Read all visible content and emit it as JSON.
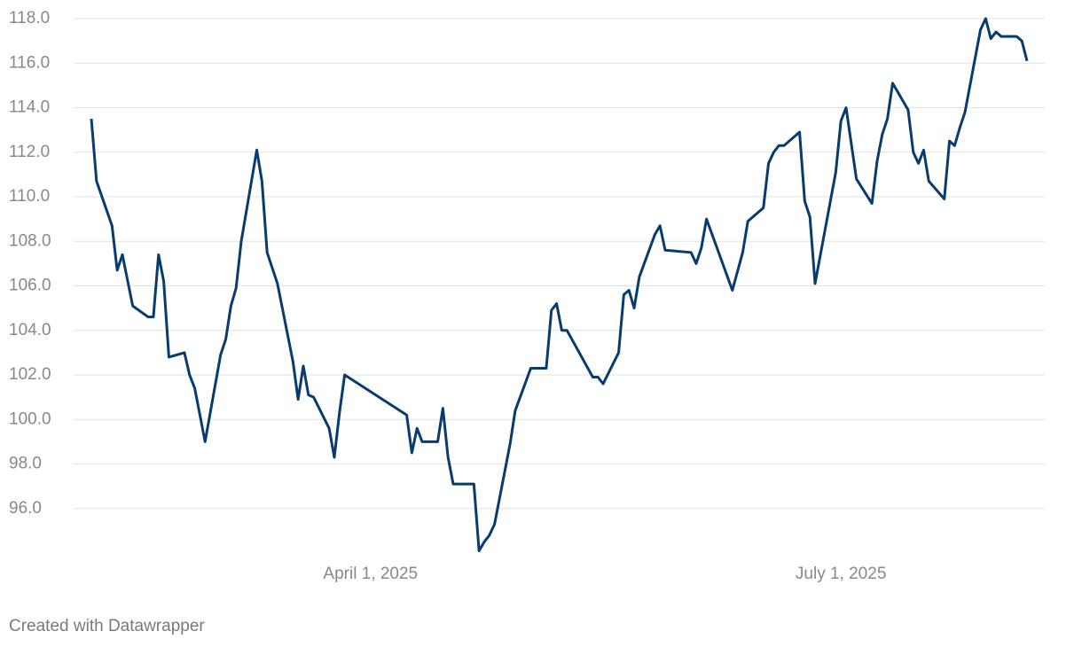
{
  "chart_data": {
    "type": "line",
    "credit": "Created with Datawrapper",
    "x": [
      "2025-02-06",
      "2025-02-07",
      "2025-02-10",
      "2025-02-11",
      "2025-02-12",
      "2025-02-14",
      "2025-02-17",
      "2025-02-18",
      "2025-02-19",
      "2025-02-20",
      "2025-02-21",
      "2025-02-24",
      "2025-02-25",
      "2025-02-26",
      "2025-02-27",
      "2025-02-28",
      "2025-03-03",
      "2025-03-04",
      "2025-03-05",
      "2025-03-06",
      "2025-03-07",
      "2025-03-10",
      "2025-03-11",
      "2025-03-12",
      "2025-03-14",
      "2025-03-17",
      "2025-03-18",
      "2025-03-19",
      "2025-03-20",
      "2025-03-21",
      "2025-03-24",
      "2025-03-25",
      "2025-03-26",
      "2025-03-27",
      "2025-04-08",
      "2025-04-09",
      "2025-04-10",
      "2025-04-11",
      "2025-04-14",
      "2025-04-15",
      "2025-04-16",
      "2025-04-17",
      "2025-04-21",
      "2025-04-22",
      "2025-04-23",
      "2025-04-24",
      "2025-04-25",
      "2025-04-28",
      "2025-04-29",
      "2025-05-02",
      "2025-05-05",
      "2025-05-06",
      "2025-05-07",
      "2025-05-08",
      "2025-05-09",
      "2025-05-14",
      "2025-05-15",
      "2025-05-16",
      "2025-05-19",
      "2025-05-20",
      "2025-05-21",
      "2025-05-22",
      "2025-05-23",
      "2025-05-26",
      "2025-05-27",
      "2025-05-28",
      "2025-06-02",
      "2025-06-03",
      "2025-06-04",
      "2025-06-05",
      "2025-06-10",
      "2025-06-12",
      "2025-06-13",
      "2025-06-16",
      "2025-06-17",
      "2025-06-18",
      "2025-06-19",
      "2025-06-20",
      "2025-06-23",
      "2025-06-24",
      "2025-06-25",
      "2025-06-26",
      "2025-06-30",
      "2025-07-01",
      "2025-07-02",
      "2025-07-04",
      "2025-07-07",
      "2025-07-08",
      "2025-07-09",
      "2025-07-10",
      "2025-07-11",
      "2025-07-14",
      "2025-07-15",
      "2025-07-16",
      "2025-07-17",
      "2025-07-18",
      "2025-07-21",
      "2025-07-22",
      "2025-07-23",
      "2025-07-24",
      "2025-07-25",
      "2025-07-28",
      "2025-07-29",
      "2025-07-30",
      "2025-07-31",
      "2025-08-01",
      "2025-08-04",
      "2025-08-05",
      "2025-08-06"
    ],
    "series": [
      {
        "color": "#083b6e",
        "values": [
          113.5,
          110.7,
          108.7,
          106.7,
          107.4,
          105.1,
          104.6,
          104.6,
          107.4,
          106.2,
          102.8,
          103.0,
          102.0,
          101.4,
          100.2,
          99.0,
          102.9,
          103.6,
          105.1,
          105.9,
          108.0,
          112.1,
          110.7,
          107.5,
          106.1,
          102.6,
          100.9,
          102.4,
          101.1,
          101.0,
          99.6,
          98.3,
          100.3,
          102.0,
          100.2,
          98.5,
          99.6,
          99.0,
          99.0,
          100.5,
          98.3,
          97.1,
          97.1,
          94.1,
          94.5,
          94.8,
          95.3,
          98.9,
          100.4,
          102.3,
          102.3,
          104.9,
          105.2,
          104.0,
          104.0,
          101.9,
          101.9,
          101.6,
          103.0,
          105.6,
          105.8,
          105.0,
          106.4,
          108.3,
          108.7,
          107.6,
          107.5,
          107.0,
          107.7,
          109.0,
          105.8,
          107.5,
          108.9,
          109.5,
          111.5,
          112.0,
          112.3,
          112.3,
          112.9,
          109.8,
          109.1,
          106.1,
          111.1,
          113.4,
          114.0,
          110.8,
          109.7,
          111.6,
          112.8,
          113.5,
          115.1,
          113.9,
          112.0,
          111.5,
          112.1,
          110.7,
          109.9,
          112.5,
          112.3,
          113.1,
          113.8,
          117.5,
          118.0,
          117.1,
          117.4,
          117.2,
          117.2,
          117.0,
          116.1
        ]
      }
    ],
    "xlim": [
      "2025-02-06",
      "2025-08-06"
    ],
    "xticks": [
      {
        "value": "2025-04-01",
        "label": "April 1, 2025"
      },
      {
        "value": "2025-07-01",
        "label": "July 1, 2025"
      }
    ],
    "ylim": [
      94,
      118
    ],
    "yticks": [
      {
        "value": 96,
        "label": "96.0"
      },
      {
        "value": 98,
        "label": "98.0"
      },
      {
        "value": 100,
        "label": "100.0"
      },
      {
        "value": 102,
        "label": "102.0"
      },
      {
        "value": 104,
        "label": "104.0"
      },
      {
        "value": 106,
        "label": "106.0"
      },
      {
        "value": 108,
        "label": "108.0"
      },
      {
        "value": 110,
        "label": "110.0"
      },
      {
        "value": 112,
        "label": "112.0"
      },
      {
        "value": 114,
        "label": "114.0"
      },
      {
        "value": 116,
        "label": "116.0"
      },
      {
        "value": 118,
        "label": "118.0"
      }
    ],
    "grid": true
  }
}
